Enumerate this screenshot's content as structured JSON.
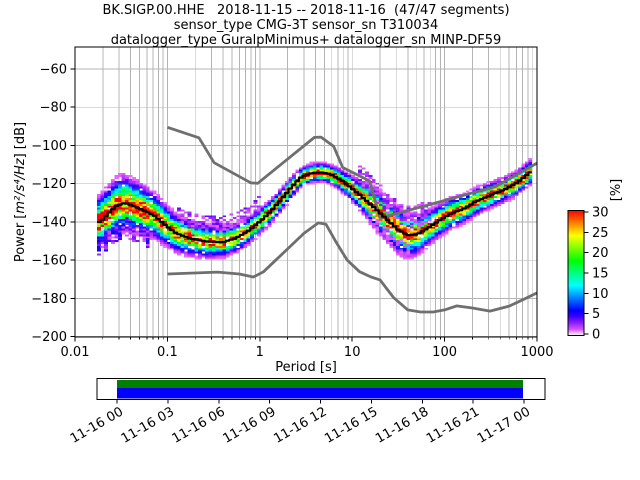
{
  "ylabel_parts": {
    "prefix": "Power [",
    "math": "m²/s⁴/Hz",
    "suffix": "] [dB]"
  },
  "chart_data": {
    "type": "heatmap",
    "title": "BK.SIGP.00.HHE   2018-11-15 -- 2018-11-16  (47/47 segments)",
    "subtitle1": "sensor_type CMG-3T sensor_sn T310034",
    "subtitle2": "datalogger_type GuralpMinimus+ datalogger_sn MINP-DF59",
    "xlabel": "Period [s]",
    "ylabel": "Power [m²/s⁴/Hz] [dB]",
    "xscale": "log",
    "xlim": [
      0.01,
      1000
    ],
    "ylim": [
      -200,
      -48.5
    ],
    "grid": true,
    "xticks": [
      0.01,
      0.1,
      1,
      10,
      100,
      1000
    ],
    "xtick_labels": [
      "0.01",
      "0.1",
      "1",
      "10",
      "100",
      "1000"
    ],
    "yticks": [
      -60,
      -80,
      -100,
      -120,
      -140,
      -160,
      -180,
      -200
    ],
    "colorbar": {
      "label": "[%]",
      "min": 0,
      "max": 30,
      "ticks": [
        0,
        5,
        10,
        15,
        20,
        25,
        30
      ]
    },
    "series": [
      {
        "name": "psd_mean",
        "color": "#000000",
        "points": [
          [
            0.018,
            -140
          ],
          [
            0.022,
            -135.5
          ],
          [
            0.027,
            -131.5
          ],
          [
            0.033,
            -130
          ],
          [
            0.042,
            -131.8
          ],
          [
            0.055,
            -134.3
          ],
          [
            0.07,
            -136.8
          ],
          [
            0.09,
            -141.5
          ],
          [
            0.12,
            -146
          ],
          [
            0.17,
            -148.6
          ],
          [
            0.25,
            -150.2
          ],
          [
            0.38,
            -150.6
          ],
          [
            0.52,
            -148.6
          ],
          [
            0.7,
            -145
          ],
          [
            0.9,
            -141
          ],
          [
            1.2,
            -135.5
          ],
          [
            1.6,
            -128.8
          ],
          [
            2.1,
            -121.8
          ],
          [
            2.7,
            -116.4
          ],
          [
            3.5,
            -114.4
          ],
          [
            4.5,
            -114.1
          ],
          [
            5.5,
            -114.9
          ],
          [
            7,
            -117.5
          ],
          [
            9,
            -121.5
          ],
          [
            12,
            -126.5
          ],
          [
            16,
            -131.8
          ],
          [
            22,
            -138
          ],
          [
            30,
            -144
          ],
          [
            38,
            -146.9
          ],
          [
            48,
            -146.5
          ],
          [
            62,
            -143.5
          ],
          [
            85,
            -139
          ],
          [
            110,
            -135.8
          ],
          [
            155,
            -133
          ],
          [
            215,
            -129
          ],
          [
            300,
            -126
          ],
          [
            420,
            -123.2
          ],
          [
            560,
            -120
          ],
          [
            700,
            -116.5
          ],
          [
            830,
            -113.5
          ]
        ]
      },
      {
        "name": "peterson_high_noise_model",
        "color": "#6f6f6f",
        "points": [
          [
            0.1,
            -90.5
          ],
          [
            0.22,
            -96
          ],
          [
            0.32,
            -109
          ],
          [
            0.8,
            -119.5
          ],
          [
            0.95,
            -119.8
          ],
          [
            3.9,
            -95.8
          ],
          [
            4.6,
            -95.6
          ],
          [
            6.3,
            -100.5
          ],
          [
            7.9,
            -111.5
          ],
          [
            15.4,
            -118.5
          ],
          [
            20,
            -138
          ],
          [
            354.8,
            -121.5
          ],
          [
            1000,
            -109.2
          ]
        ]
      },
      {
        "name": "peterson_low_noise_model",
        "color": "#6f6f6f",
        "points": [
          [
            0.1,
            -167.2
          ],
          [
            0.35,
            -166.2
          ],
          [
            0.6,
            -167.2
          ],
          [
            0.85,
            -168.8
          ],
          [
            1.1,
            -166
          ],
          [
            1.5,
            -159.8
          ],
          [
            2.1,
            -153.1
          ],
          [
            3,
            -146
          ],
          [
            4.3,
            -140.5
          ],
          [
            5.2,
            -141.2
          ],
          [
            6.5,
            -149.5
          ],
          [
            8.8,
            -159.9
          ],
          [
            12,
            -166
          ],
          [
            16,
            -168.8
          ],
          [
            20,
            -170.3
          ],
          [
            28,
            -179.5
          ],
          [
            40,
            -186
          ],
          [
            55,
            -187.1
          ],
          [
            75,
            -187.1
          ],
          [
            100,
            -186
          ],
          [
            135,
            -183.9
          ],
          [
            200,
            -185
          ],
          [
            310,
            -186.6
          ],
          [
            500,
            -184
          ],
          [
            700,
            -180.7
          ],
          [
            1000,
            -177.1
          ]
        ]
      }
    ],
    "histogram": {
      "description": "2D probability histogram of PSD values, percent of segments per 1 dB cell",
      "period_range": [
        0.0174,
        830
      ],
      "bin_width_octaves": 0.125,
      "db_cell_height": 1,
      "max_percent": 30,
      "spread_sigma_db": [
        [
          0.018,
          5.5
        ],
        [
          0.03,
          6
        ],
        [
          0.06,
          5
        ],
        [
          0.1,
          4.2
        ],
        [
          0.2,
          3.6
        ],
        [
          0.4,
          3.2
        ],
        [
          0.8,
          2.8
        ],
        [
          1.5,
          2.4
        ],
        [
          3,
          2
        ],
        [
          5,
          2
        ],
        [
          8,
          2.4
        ],
        [
          12,
          3.2
        ],
        [
          18,
          4.5
        ],
        [
          30,
          5
        ],
        [
          45,
          4.5
        ],
        [
          70,
          3.6
        ],
        [
          120,
          3.2
        ],
        [
          250,
          2.8
        ],
        [
          500,
          2.6
        ],
        [
          830,
          2.6
        ]
      ],
      "outlier_bands": [
        {
          "period_range": [
            0.12,
            0.95
          ],
          "db_offset": [
            6,
            13
          ],
          "percent": [
            0.8,
            4
          ]
        },
        {
          "period_range": [
            11,
            70
          ],
          "db_offset": [
            4,
            15
          ],
          "percent": [
            0.8,
            3.5
          ]
        },
        {
          "period_range": [
            14,
            40
          ],
          "db_offset": [
            -11,
            -5
          ],
          "percent": [
            0.8,
            2.5
          ]
        },
        {
          "period_range": [
            0.017,
            0.06
          ],
          "db_offset": [
            -18,
            -8
          ],
          "percent": [
            1,
            6
          ]
        }
      ]
    },
    "timeline": {
      "ticks": [
        "11-16 00",
        "11-16 03",
        "11-16 06",
        "11-16 09",
        "11-16 12",
        "11-16 15",
        "11-16 18",
        "11-16 21",
        "11-17 00"
      ],
      "colors": {
        "top": "#008000",
        "bottom": "#0000ff"
      }
    }
  }
}
